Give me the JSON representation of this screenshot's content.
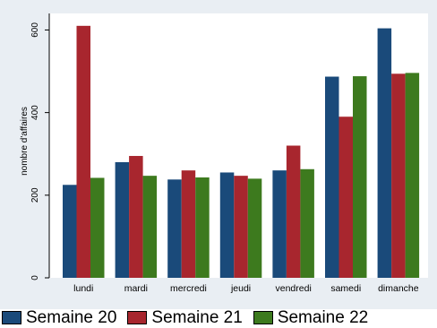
{
  "chart_data": {
    "type": "bar",
    "categories": [
      "lundi",
      "mardi",
      "mercredi",
      "jeudi",
      "vendredi",
      "samedi",
      "dimanche"
    ],
    "series": [
      {
        "name": "Semaine 20",
        "values": [
          225,
          280,
          238,
          255,
          260,
          487,
          604
        ],
        "color": "#1a4a7a"
      },
      {
        "name": "Semaine 21",
        "values": [
          610,
          295,
          260,
          247,
          320,
          390,
          494
        ],
        "color": "#a8262e"
      },
      {
        "name": "Semaine 22",
        "values": [
          242,
          247,
          243,
          240,
          263,
          488,
          496
        ],
        "color": "#3d7a1e"
      }
    ],
    "ylabel": "nombre d'affaires",
    "xlabel": "",
    "ylim": [
      0,
      640
    ],
    "yticks": [
      0,
      200,
      400,
      600
    ],
    "grid": false,
    "legend_position": "bottom"
  }
}
